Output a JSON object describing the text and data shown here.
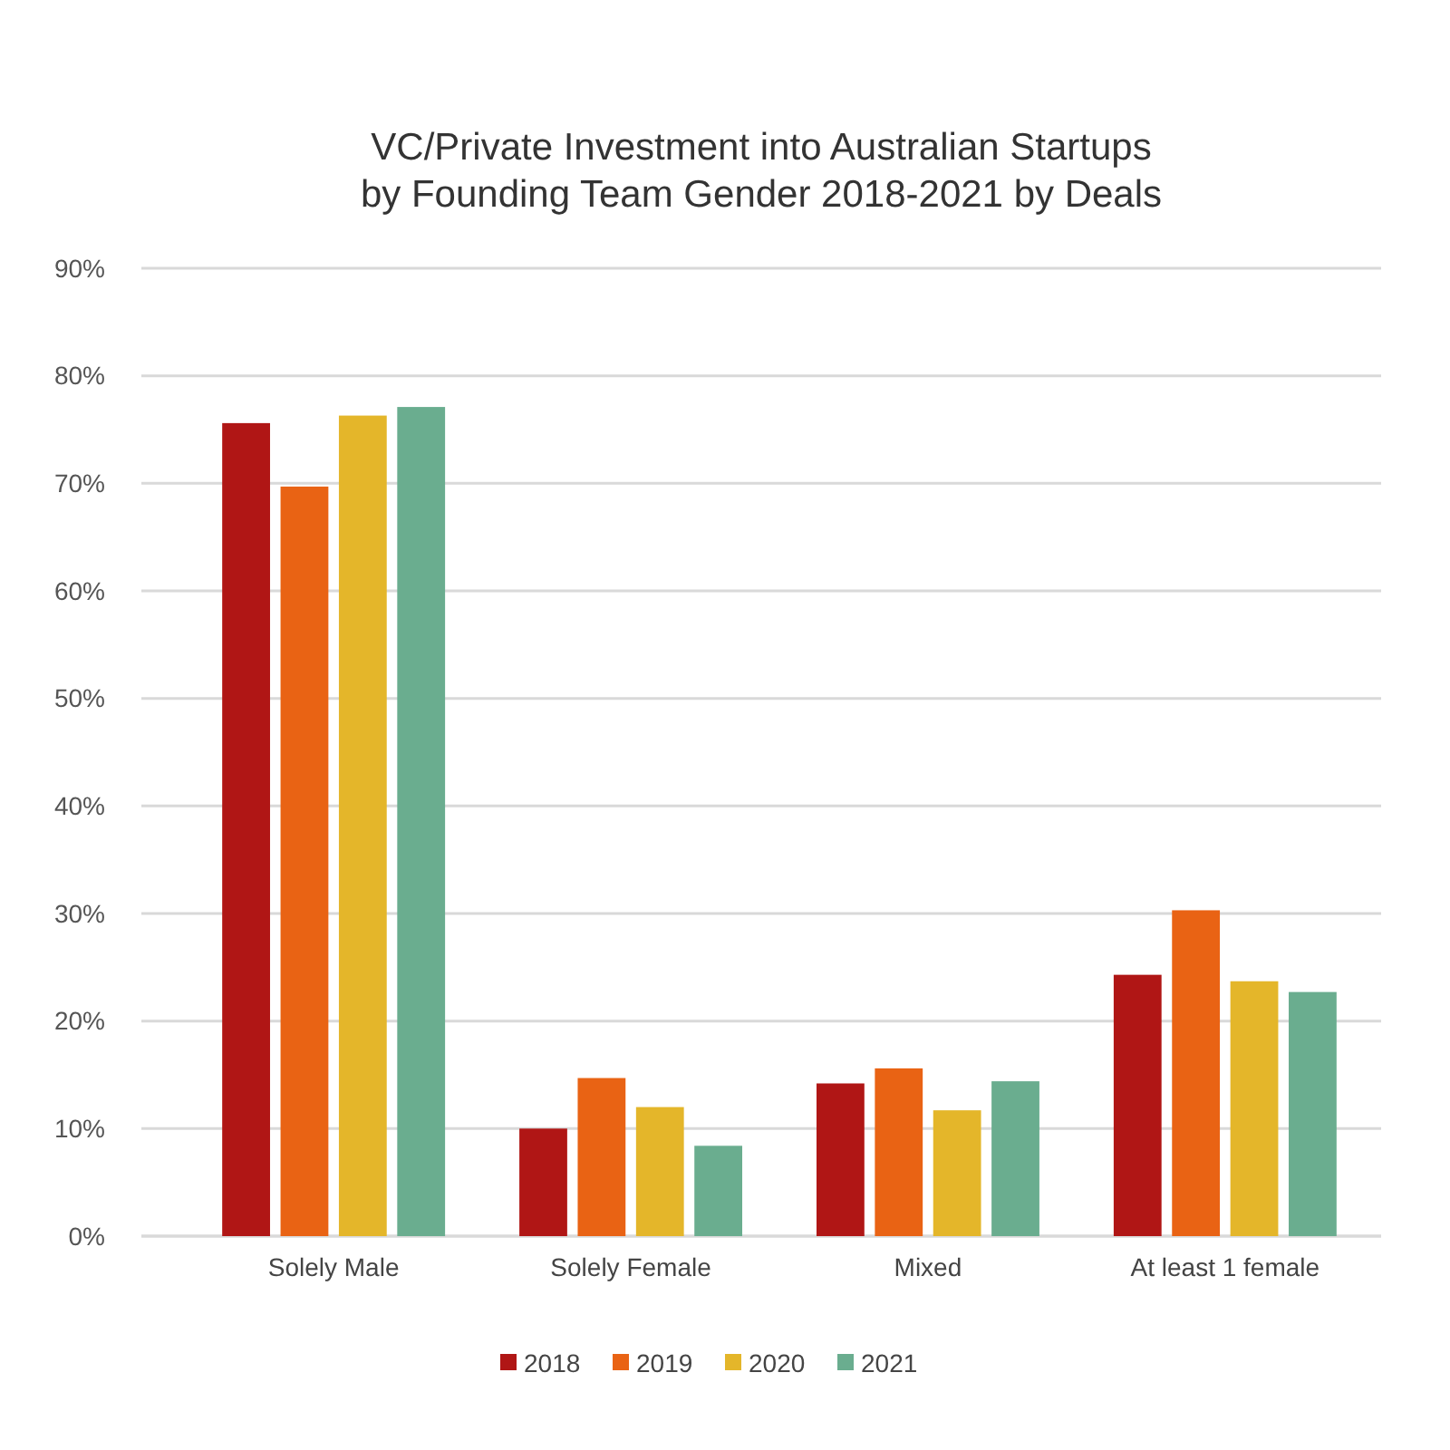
{
  "chart_data": {
    "type": "bar",
    "title": "VC/Private Investment into Australian Startups by Founding Team Gender 2018-2021 by Deals",
    "categories": [
      "Solely Male",
      "Solely Female",
      "Mixed",
      "At least 1 female"
    ],
    "series": [
      {
        "name": "2018",
        "color": "#b01615",
        "values": [
          75.6,
          10.0,
          14.2,
          24.3
        ]
      },
      {
        "name": "2019",
        "color": "#e96314",
        "values": [
          69.7,
          14.7,
          15.6,
          30.3
        ]
      },
      {
        "name": "2020",
        "color": "#e4b62a",
        "values": [
          76.3,
          12.0,
          11.7,
          23.7
        ]
      },
      {
        "name": "2021",
        "color": "#6aad8f",
        "values": [
          77.1,
          8.4,
          14.4,
          22.7
        ]
      }
    ],
    "ylim": [
      0,
      90
    ],
    "yticks": [
      {
        "value": 0,
        "label": "0%"
      },
      {
        "value": 10,
        "label": "10%"
      },
      {
        "value": 20,
        "label": "20%"
      },
      {
        "value": 30,
        "label": "30%"
      },
      {
        "value": 40,
        "label": "40%"
      },
      {
        "value": 50,
        "label": "50%"
      },
      {
        "value": 60,
        "label": "60%"
      },
      {
        "value": 70,
        "label": "70%"
      },
      {
        "value": 80,
        "label": "80%"
      },
      {
        "value": 90,
        "label": "90%"
      }
    ],
    "grid": "y",
    "legend": "bottom"
  }
}
